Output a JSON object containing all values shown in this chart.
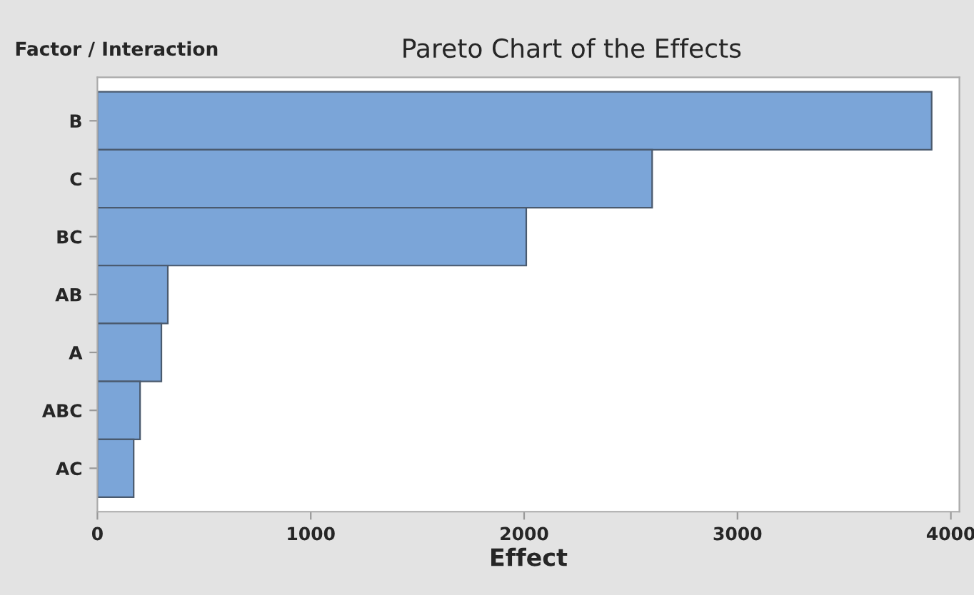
{
  "chart_data": {
    "type": "bar",
    "orientation": "horizontal",
    "title": "Pareto Chart of the Effects",
    "xlabel": "Effect",
    "ylabel": "Factor / Interaction",
    "categories": [
      "B",
      "C",
      "BC",
      "AB",
      "A",
      "ABC",
      "AC"
    ],
    "values": [
      3910,
      2600,
      2010,
      330,
      300,
      200,
      170
    ],
    "color": "#7ba5d8",
    "xlim": [
      0,
      4040
    ],
    "xticks": [
      0,
      1000,
      2000,
      3000,
      4000
    ],
    "grid": false
  }
}
